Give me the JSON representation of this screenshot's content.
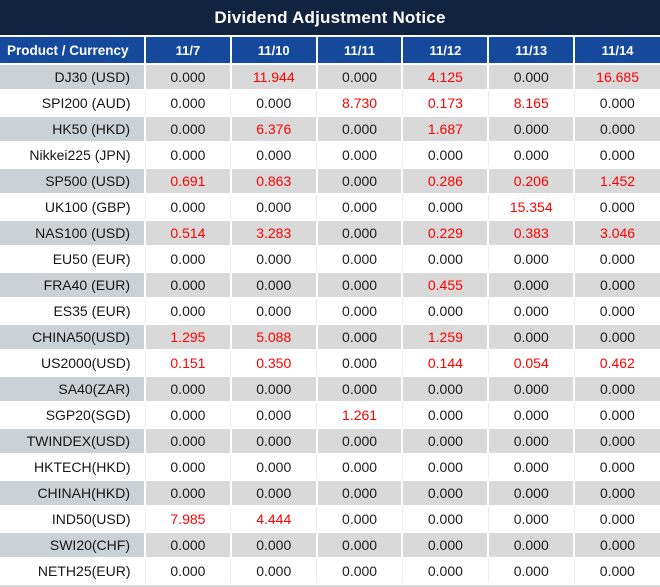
{
  "title": "Dividend Adjustment Notice",
  "colors": {
    "title_bg": "#102440",
    "header_bg": "#14499c",
    "row_alt_bg": "#d9d9d9",
    "product_alt_bg": "#ccd1d6",
    "highlight_red": "#ff0000"
  },
  "chart_data": {
    "type": "table",
    "title": "Dividend Adjustment Notice",
    "header": [
      "Product / Currency",
      "11/7",
      "11/10",
      "11/11",
      "11/12",
      "11/13",
      "11/14"
    ],
    "rows": [
      {
        "product": "DJ30 (USD)",
        "values": [
          "0.000",
          "11.944",
          "0.000",
          "4.125",
          "0.000",
          "16.685"
        ]
      },
      {
        "product": "SPI200 (AUD)",
        "values": [
          "0.000",
          "0.000",
          "8.730",
          "0.173",
          "8.165",
          "0.000"
        ]
      },
      {
        "product": "HK50 (HKD)",
        "values": [
          "0.000",
          "6.376",
          "0.000",
          "1.687",
          "0.000",
          "0.000"
        ]
      },
      {
        "product": "Nikkei225 (JPN)",
        "values": [
          "0.000",
          "0.000",
          "0.000",
          "0.000",
          "0.000",
          "0.000"
        ]
      },
      {
        "product": "SP500 (USD)",
        "values": [
          "0.691",
          "0.863",
          "0.000",
          "0.286",
          "0.206",
          "1.452"
        ]
      },
      {
        "product": "UK100 (GBP)",
        "values": [
          "0.000",
          "0.000",
          "0.000",
          "0.000",
          "15.354",
          "0.000"
        ]
      },
      {
        "product": "NAS100 (USD)",
        "values": [
          "0.514",
          "3.283",
          "0.000",
          "0.229",
          "0.383",
          "3.046"
        ]
      },
      {
        "product": "EU50 (EUR)",
        "values": [
          "0.000",
          "0.000",
          "0.000",
          "0.000",
          "0.000",
          "0.000"
        ]
      },
      {
        "product": "FRA40 (EUR)",
        "values": [
          "0.000",
          "0.000",
          "0.000",
          "0.455",
          "0.000",
          "0.000"
        ]
      },
      {
        "product": "ES35 (EUR)",
        "values": [
          "0.000",
          "0.000",
          "0.000",
          "0.000",
          "0.000",
          "0.000"
        ]
      },
      {
        "product": "CHINA50(USD)",
        "values": [
          "1.295",
          "5.088",
          "0.000",
          "1.259",
          "0.000",
          "0.000"
        ]
      },
      {
        "product": "US2000(USD)",
        "values": [
          "0.151",
          "0.350",
          "0.000",
          "0.144",
          "0.054",
          "0.462"
        ]
      },
      {
        "product": "SA40(ZAR)",
        "values": [
          "0.000",
          "0.000",
          "0.000",
          "0.000",
          "0.000",
          "0.000"
        ]
      },
      {
        "product": "SGP20(SGD)",
        "values": [
          "0.000",
          "0.000",
          "1.261",
          "0.000",
          "0.000",
          "0.000"
        ]
      },
      {
        "product": "TWINDEX(USD)",
        "values": [
          "0.000",
          "0.000",
          "0.000",
          "0.000",
          "0.000",
          "0.000"
        ]
      },
      {
        "product": "HKTECH(HKD)",
        "values": [
          "0.000",
          "0.000",
          "0.000",
          "0.000",
          "0.000",
          "0.000"
        ]
      },
      {
        "product": "CHINAH(HKD)",
        "values": [
          "0.000",
          "0.000",
          "0.000",
          "0.000",
          "0.000",
          "0.000"
        ]
      },
      {
        "product": "IND50(USD)",
        "values": [
          "7.985",
          "4.444",
          "0.000",
          "0.000",
          "0.000",
          "0.000"
        ]
      },
      {
        "product": "SWI20(CHF)",
        "values": [
          "0.000",
          "0.000",
          "0.000",
          "0.000",
          "0.000",
          "0.000"
        ]
      },
      {
        "product": "NETH25(EUR)",
        "values": [
          "0.000",
          "0.000",
          "0.000",
          "0.000",
          "0.000",
          "0.000"
        ]
      }
    ]
  }
}
